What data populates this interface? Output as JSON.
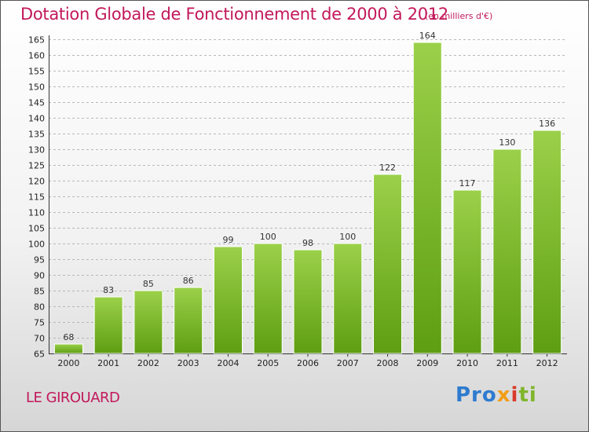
{
  "header": {
    "title": "Dotation Globale de Fonctionnement de 2000 à 2012",
    "subtitle": "(en milliers d'€)"
  },
  "footer": {
    "commune": "LE GIROUARD",
    "logo_parts": [
      "Pro",
      "x",
      "i",
      "ti"
    ]
  },
  "colors": {
    "accent": "#c2185b",
    "bar_light": "#9bd14a",
    "bar_dark": "#5e9e12",
    "grid": "#b8b8b8"
  },
  "chart_data": {
    "type": "bar",
    "title": "Dotation Globale de Fonctionnement de 2000 à 2012",
    "subtitle": "(en milliers d'€)",
    "xlabel": "",
    "ylabel": "",
    "categories": [
      "2000",
      "2001",
      "2002",
      "2003",
      "2004",
      "2005",
      "2006",
      "2007",
      "2008",
      "2009",
      "2010",
      "2011",
      "2012"
    ],
    "values": [
      68,
      83,
      85,
      86,
      99,
      100,
      98,
      100,
      122,
      164,
      117,
      130,
      136
    ],
    "ylim": [
      65,
      165
    ],
    "yticks": [
      65,
      70,
      75,
      80,
      85,
      90,
      95,
      100,
      105,
      110,
      115,
      120,
      125,
      130,
      135,
      140,
      145,
      150,
      155,
      160,
      165
    ],
    "grid": true,
    "legend": "none"
  }
}
